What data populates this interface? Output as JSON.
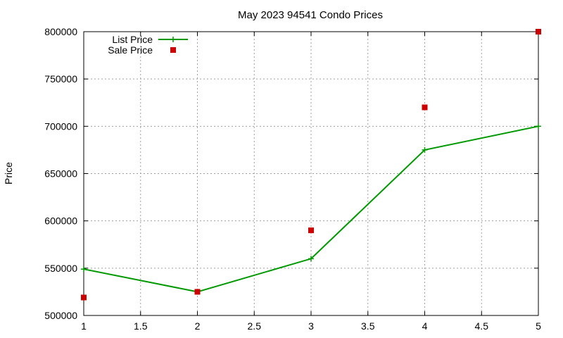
{
  "chart_data": {
    "type": "line",
    "title": "May 2023 94541 Condo Prices",
    "xlabel": "",
    "ylabel": "Price",
    "xlim": [
      1,
      5
    ],
    "ylim": [
      500000,
      800000
    ],
    "xticks": [
      "1",
      "1.5",
      "2",
      "2.5",
      "3",
      "3.5",
      "4",
      "4.5",
      "5"
    ],
    "yticks": [
      "500000",
      "550000",
      "600000",
      "650000",
      "700000",
      "750000",
      "800000"
    ],
    "grid": true,
    "legend_position": "top-left",
    "series": [
      {
        "name": "List Price",
        "style": "line-points",
        "color": "#009900",
        "points": [
          {
            "x": 1,
            "y": 549000
          },
          {
            "x": 2,
            "y": 525000
          },
          {
            "x": 3,
            "y": 560000
          },
          {
            "x": 4,
            "y": 675000
          },
          {
            "x": 5,
            "y": 700000
          }
        ]
      },
      {
        "name": "Sale Price",
        "style": "points",
        "color": "#cc0000",
        "points": [
          {
            "x": 1,
            "y": 519000
          },
          {
            "x": 2,
            "y": 525000
          },
          {
            "x": 3,
            "y": 590000
          },
          {
            "x": 4,
            "y": 720000
          },
          {
            "x": 5,
            "y": 800000
          }
        ]
      }
    ]
  }
}
